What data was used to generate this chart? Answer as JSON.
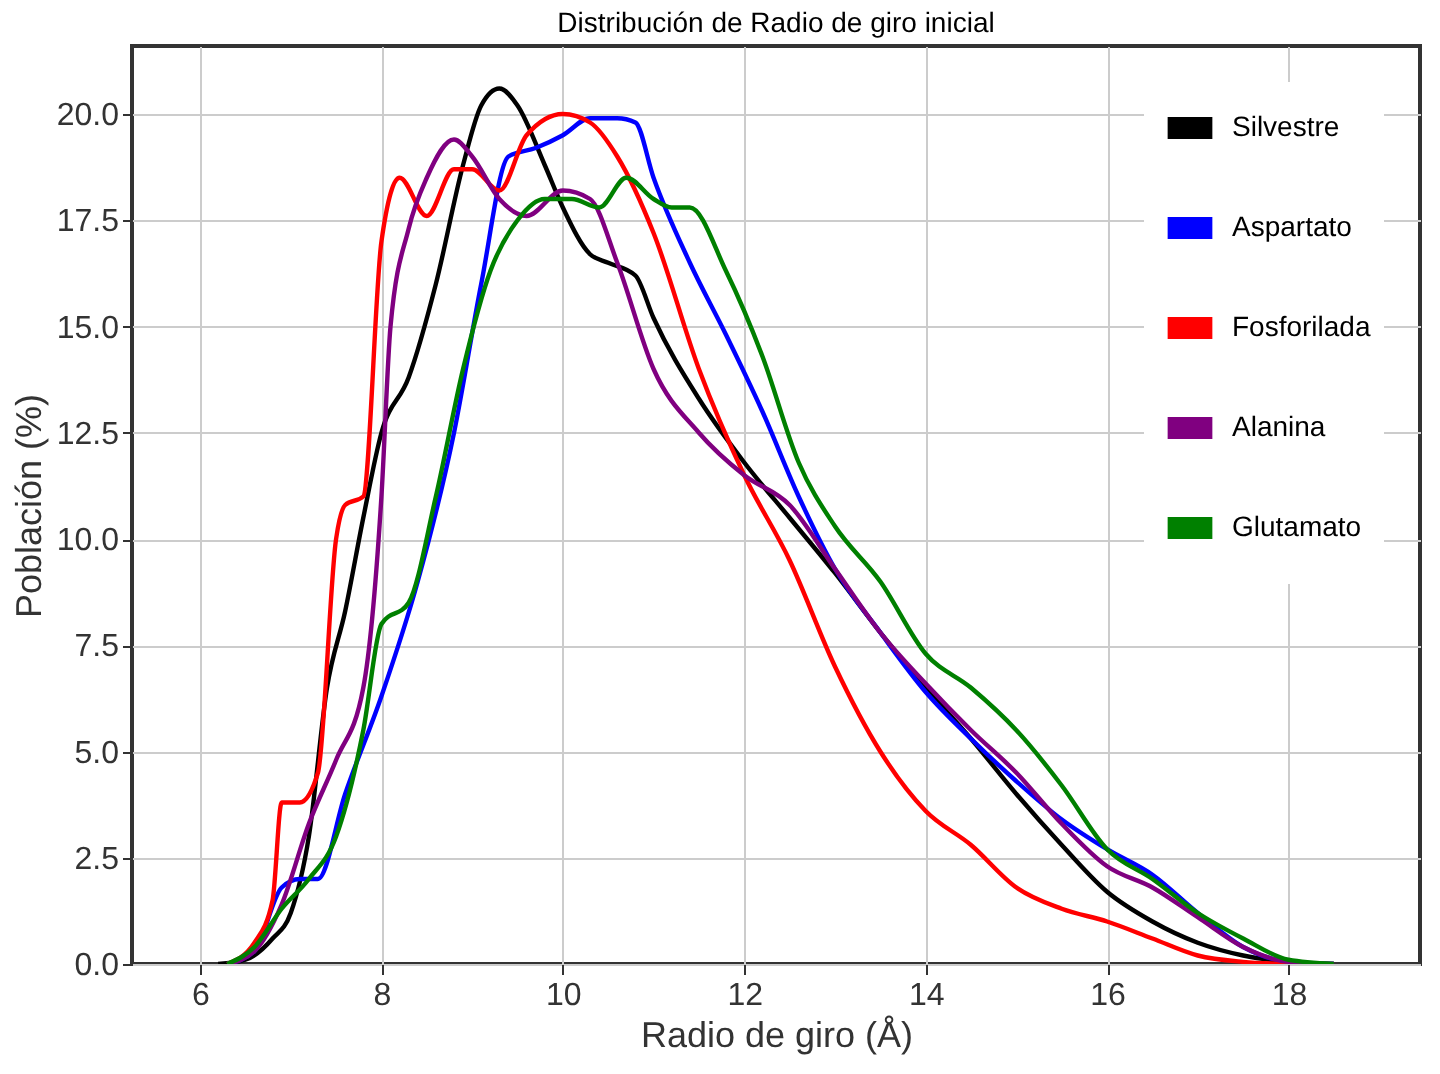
{
  "chart_data": {
    "type": "line",
    "title": "Distribución de Radio de giro inicial",
    "xlabel": "Radio de giro (Å)",
    "ylabel": "Población (%)",
    "xlim": [
      5.25,
      19.45
    ],
    "ylim": [
      0,
      21.6
    ],
    "xticks": [
      6,
      8,
      10,
      12,
      14,
      16,
      18
    ],
    "yticks": [
      {
        "value": 0,
        "label": "0.0"
      },
      2.5,
      {
        "value": 5,
        "label": "5.0"
      },
      7.5,
      {
        "value": 10,
        "label": "10.0"
      },
      12.5,
      {
        "value": 15,
        "label": "15.0"
      },
      17.5,
      {
        "value": 20,
        "label": "20.0"
      }
    ],
    "grid": true,
    "legend": "top right",
    "marker": "none",
    "line_style": "solid",
    "series": [
      {
        "name": "Silvestre",
        "color": "#000000",
        "x": [
          6.2,
          6.5,
          6.8,
          7.0,
          7.2,
          7.4,
          7.6,
          7.8,
          8.0,
          8.3,
          8.6,
          8.9,
          9.1,
          9.3,
          9.5,
          9.8,
          10.0,
          10.3,
          10.5,
          10.8,
          11.0,
          11.5,
          12.0,
          12.5,
          13.0,
          13.5,
          14.0,
          14.5,
          15.0,
          15.5,
          16.0,
          16.5,
          17.0,
          17.5,
          18.0,
          18.5
        ],
        "values": [
          0,
          0.1,
          0.6,
          1.2,
          3,
          6.5,
          8.3,
          10.5,
          12.5,
          13.8,
          16,
          18.8,
          20.2,
          20.6,
          20.2,
          18.8,
          17.8,
          16.7,
          16.5,
          16.2,
          15.2,
          13.3,
          11.8,
          10.5,
          9.2,
          7.8,
          6.5,
          5.3,
          4,
          2.8,
          1.7,
          1,
          0.5,
          0.2,
          0.05,
          0
        ]
      },
      {
        "name": "Aspartato",
        "color": "#0000ff",
        "x": [
          6.3,
          6.6,
          6.9,
          7.1,
          7.3,
          7.6,
          8.0,
          8.4,
          8.8,
          9.1,
          9.4,
          9.7,
          10.0,
          10.3,
          10.6,
          10.8,
          11.0,
          11.4,
          11.8,
          12.2,
          12.6,
          13.0,
          13.5,
          14.0,
          14.5,
          15.0,
          15.5,
          16.0,
          16.5,
          17.0,
          17.5,
          18.0,
          18.5
        ],
        "values": [
          0,
          0.3,
          1.8,
          2,
          2,
          4,
          6.3,
          9,
          12.5,
          16,
          19,
          19.2,
          19.5,
          19.9,
          19.9,
          19.8,
          18.5,
          16.5,
          14.8,
          13,
          11,
          9.3,
          7.8,
          6.4,
          5.3,
          4.3,
          3.4,
          2.7,
          2.1,
          1.2,
          0.4,
          0.05,
          0
        ]
      },
      {
        "name": "Fosforilada",
        "color": "#ff0000",
        "x": [
          6.3,
          6.6,
          6.8,
          6.9,
          7.1,
          7.3,
          7.5,
          7.6,
          7.8,
          8.0,
          8.2,
          8.5,
          8.8,
          9.0,
          9.3,
          9.6,
          10.0,
          10.3,
          10.6,
          11.0,
          11.5,
          12.0,
          12.5,
          13.0,
          13.5,
          14.0,
          14.5,
          15.0,
          15.5,
          16.0,
          16.5,
          17.0,
          17.5,
          18.0
        ],
        "values": [
          0,
          0.5,
          1.5,
          3.8,
          3.8,
          4.5,
          10,
          10.8,
          11,
          17,
          18.5,
          17.6,
          18.7,
          18.7,
          18.2,
          19.5,
          20,
          19.8,
          19,
          17.2,
          14,
          11.5,
          9.5,
          7,
          5,
          3.6,
          2.8,
          1.8,
          1.3,
          1,
          0.6,
          0.2,
          0.05,
          0
        ]
      },
      {
        "name": "Alanina",
        "color": "#800080",
        "x": [
          6.3,
          6.6,
          6.9,
          7.2,
          7.5,
          7.8,
          8.0,
          8.1,
          8.3,
          8.5,
          8.8,
          9.0,
          9.3,
          9.6,
          10.0,
          10.3,
          10.6,
          11.0,
          11.5,
          12.0,
          12.5,
          13.0,
          13.5,
          14.0,
          14.5,
          15.0,
          15.5,
          16.0,
          16.5,
          17.0,
          17.5,
          18.0,
          18.5
        ],
        "values": [
          0,
          0.3,
          1.4,
          3.3,
          4.8,
          6.5,
          11,
          15,
          17.3,
          18.5,
          19.4,
          19,
          18,
          17.6,
          18.2,
          18,
          16.5,
          14,
          12.5,
          11.5,
          10.8,
          9.3,
          7.8,
          6.6,
          5.5,
          4.5,
          3.3,
          2.3,
          1.8,
          1.1,
          0.4,
          0.05,
          0
        ]
      },
      {
        "name": "Glutamato",
        "color": "#008000",
        "x": [
          6.3,
          6.6,
          6.9,
          7.2,
          7.5,
          7.8,
          8.0,
          8.3,
          8.6,
          8.9,
          9.2,
          9.5,
          9.8,
          10.1,
          10.4,
          10.7,
          11.0,
          11.2,
          11.4,
          11.8,
          12.2,
          12.6,
          13.0,
          13.5,
          14.0,
          14.5,
          15.0,
          15.5,
          16.0,
          16.5,
          17.0,
          17.5,
          18.0,
          18.5
        ],
        "values": [
          0,
          0.4,
          1.3,
          2,
          3,
          5.5,
          8,
          8.5,
          11,
          14,
          16.3,
          17.5,
          18,
          18,
          17.8,
          18.5,
          18,
          17.8,
          17.8,
          16.3,
          14.3,
          11.8,
          10.3,
          9,
          7.3,
          6.5,
          5.5,
          4.2,
          2.7,
          2,
          1.2,
          0.6,
          0.1,
          0
        ]
      }
    ]
  }
}
